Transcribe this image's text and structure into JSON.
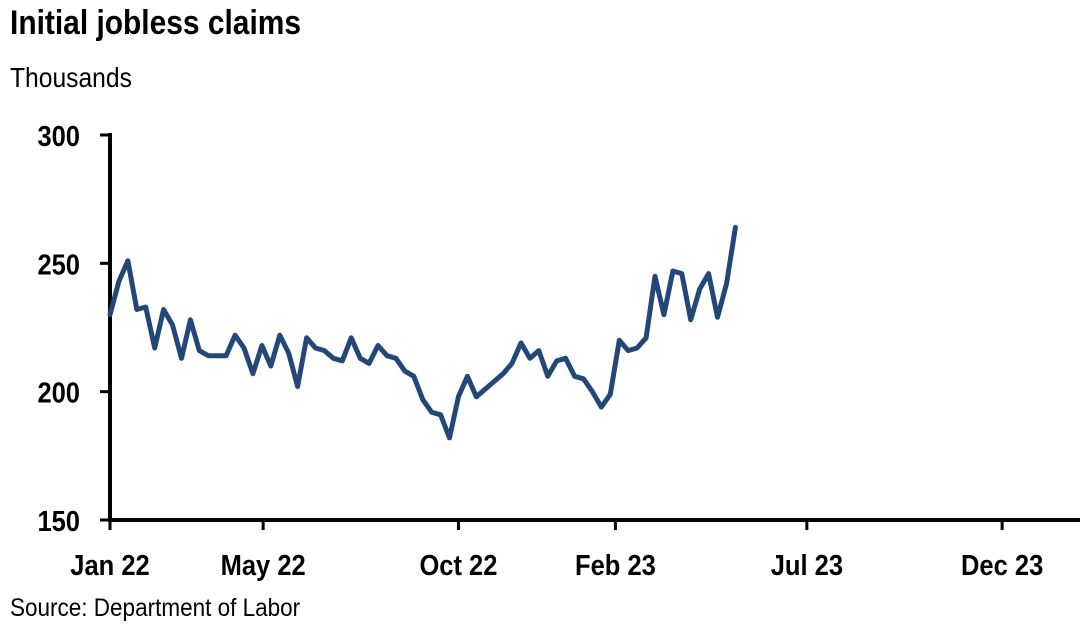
{
  "title": "Initial jobless claims",
  "subtitle": "Thousands",
  "source": "Source: Department of Labor",
  "colors": {
    "line": "#24477a",
    "axis": "#000000"
  },
  "chart_data": {
    "type": "line",
    "title": "Initial jobless claims",
    "ylabel": "Thousands",
    "xlabel": "",
    "ylim": [
      150,
      300
    ],
    "yticks": [
      150,
      200,
      250,
      300
    ],
    "xlim": [
      "2022-01-01",
      "2024-01-31"
    ],
    "xticks": [
      {
        "date": "2022-01-01",
        "label": "Jan 22"
      },
      {
        "date": "2022-05-01",
        "label": "May 22"
      },
      {
        "date": "2022-10-01",
        "label": "Oct 22"
      },
      {
        "date": "2023-02-01",
        "label": "Feb 23"
      },
      {
        "date": "2023-07-01",
        "label": "Jul 23"
      },
      {
        "date": "2023-12-01",
        "label": "Dec 23"
      }
    ],
    "grid": false,
    "legend": "none",
    "series": [
      {
        "x": [
          "2022-01-01",
          "2022-01-08",
          "2022-01-15",
          "2022-01-22",
          "2022-01-29",
          "2022-02-05",
          "2022-02-12",
          "2022-02-19",
          "2022-02-26",
          "2022-03-05",
          "2022-03-12",
          "2022-03-19",
          "2022-03-26",
          "2022-04-02",
          "2022-04-09",
          "2022-04-16",
          "2022-04-23",
          "2022-04-30",
          "2022-05-07",
          "2022-05-14",
          "2022-05-21",
          "2022-05-28",
          "2022-06-04",
          "2022-06-11",
          "2022-06-18",
          "2022-06-25",
          "2022-07-02",
          "2022-07-09",
          "2022-07-16",
          "2022-07-23",
          "2022-07-30",
          "2022-08-06",
          "2022-08-13",
          "2022-08-20",
          "2022-08-27",
          "2022-09-03",
          "2022-09-10",
          "2022-09-17",
          "2022-09-24",
          "2022-10-01",
          "2022-10-08",
          "2022-10-15",
          "2022-10-22",
          "2022-10-29",
          "2022-11-05",
          "2022-11-12",
          "2022-11-19",
          "2022-11-26",
          "2022-12-03",
          "2022-12-10",
          "2022-12-17",
          "2022-12-24",
          "2022-12-31",
          "2023-01-07",
          "2023-01-14",
          "2023-01-21",
          "2023-01-28",
          "2023-02-04",
          "2023-02-11",
          "2023-02-18",
          "2023-02-25",
          "2023-03-04",
          "2023-03-11",
          "2023-03-18",
          "2023-03-25",
          "2023-04-01",
          "2023-04-08",
          "2023-04-15"
        ],
        "values": [
          230,
          243,
          251,
          232,
          233,
          217,
          232,
          226,
          213,
          228,
          216,
          214,
          214,
          214,
          222,
          217,
          207,
          218,
          210,
          222,
          215,
          202,
          221,
          217,
          216,
          213,
          212,
          221,
          213,
          211,
          218,
          214,
          213,
          208,
          206,
          197,
          192,
          191,
          182,
          198,
          206,
          198,
          201,
          204,
          207,
          211,
          219,
          213,
          216,
          206,
          212,
          213,
          206,
          205,
          200,
          194,
          199,
          220,
          216,
          217,
          221,
          245,
          230,
          247,
          246,
          228,
          240,
          246
        ]
      }
    ],
    "series_extra": {
      "x": [
        "2023-04-22",
        "2023-04-29",
        "2023-05-06"
      ],
      "values": [
        229,
        242,
        264
      ]
    }
  }
}
